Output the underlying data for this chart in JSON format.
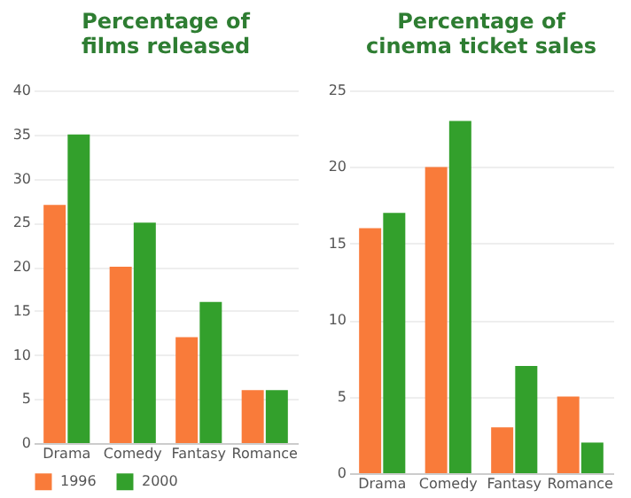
{
  "chart_data": [
    {
      "type": "bar",
      "title": [
        "Percentage of",
        "films released"
      ],
      "categories": [
        "Drama",
        "Comedy",
        "Fantasy",
        "Romance"
      ],
      "series": [
        {
          "name": "1996",
          "color": "#f97b3a",
          "values": [
            27,
            20,
            12,
            6
          ]
        },
        {
          "name": "2000",
          "color": "#33a02c",
          "values": [
            35,
            25,
            16,
            6
          ]
        }
      ],
      "ylim": [
        0,
        40
      ],
      "yticks": [
        0,
        5,
        10,
        15,
        20,
        25,
        30,
        35,
        40
      ],
      "grid": "y",
      "legend": "bottom"
    },
    {
      "type": "bar",
      "title": [
        "Percentage of",
        "cinema ticket sales"
      ],
      "categories": [
        "Drama",
        "Comedy",
        "Fantasy",
        "Romance"
      ],
      "series": [
        {
          "name": "1996",
          "color": "#f97b3a",
          "values": [
            16,
            20,
            3,
            5
          ]
        },
        {
          "name": "2000",
          "color": "#33a02c",
          "values": [
            17,
            23,
            7,
            2
          ]
        }
      ],
      "ylim": [
        0,
        25
      ],
      "yticks": [
        0,
        5,
        10,
        15,
        20,
        25
      ],
      "grid": "y"
    }
  ]
}
